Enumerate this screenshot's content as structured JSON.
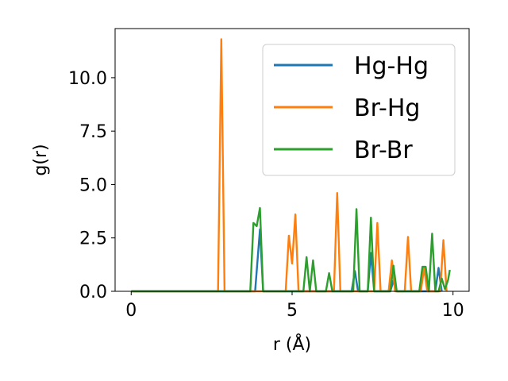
{
  "chart_data": {
    "type": "line",
    "xlabel": "r (Å)",
    "ylabel": "g(r)",
    "xlim": [
      -0.5,
      10.5
    ],
    "ylim": [
      0,
      12.3
    ],
    "xticks": [
      0,
      5,
      10
    ],
    "yticks": [
      0.0,
      2.5,
      5.0,
      7.5,
      10.0
    ],
    "ytick_labels": [
      "0.0",
      "2.5",
      "5.0",
      "7.5",
      "10.0"
    ],
    "legend": "top-right",
    "grid": false,
    "series": [
      {
        "name": "Hg-Hg",
        "color": "#1f77b4",
        "x": [
          0,
          3.85,
          4.0,
          4.1,
          6.85,
          6.95,
          7.05,
          7.35,
          7.45,
          7.55,
          8.05,
          8.15,
          8.25,
          9.45,
          9.55,
          9.65
        ],
        "y": [
          0,
          0,
          2.9,
          0,
          0,
          0.95,
          0,
          0,
          1.8,
          0,
          0,
          0.5,
          0,
          0,
          1.1,
          0
        ]
      },
      {
        "name": "Br-Hg",
        "color": "#ff7f0e",
        "x": [
          0,
          2.7,
          2.8,
          2.9,
          4.8,
          4.9,
          5.0,
          5.1,
          5.2,
          6.3,
          6.4,
          6.5,
          7.55,
          7.65,
          7.75,
          8.0,
          8.1,
          8.2,
          8.5,
          8.6,
          8.7,
          9.0,
          9.1,
          9.2,
          9.6,
          9.7,
          9.8
        ],
        "y": [
          0,
          0,
          11.8,
          0,
          0,
          2.6,
          1.3,
          3.6,
          0,
          0,
          4.6,
          0,
          0,
          3.2,
          0,
          0,
          1.45,
          0,
          0,
          2.55,
          0,
          0,
          1.1,
          0,
          0,
          2.4,
          0
        ]
      },
      {
        "name": "Br-Br",
        "color": "#2ca02c",
        "x": [
          0,
          3.7,
          3.8,
          3.9,
          4.0,
          4.1,
          5.35,
          5.45,
          5.55,
          5.65,
          5.75,
          6.05,
          6.15,
          6.25,
          6.9,
          7.0,
          7.1,
          7.35,
          7.45,
          7.55,
          8.05,
          8.15,
          8.25,
          8.95,
          9.05,
          9.15,
          9.25,
          9.35,
          9.45,
          9.55,
          9.65,
          9.75,
          9.85,
          9.9
        ],
        "y": [
          0,
          0,
          3.2,
          3.05,
          3.9,
          0,
          0,
          1.6,
          0,
          1.45,
          0,
          0,
          0.85,
          0,
          0,
          3.85,
          0,
          0,
          3.45,
          0,
          0,
          1.2,
          0,
          0,
          1.15,
          1.15,
          0,
          2.7,
          0,
          0,
          0.6,
          0.1,
          0.55,
          1.0
        ]
      }
    ]
  }
}
